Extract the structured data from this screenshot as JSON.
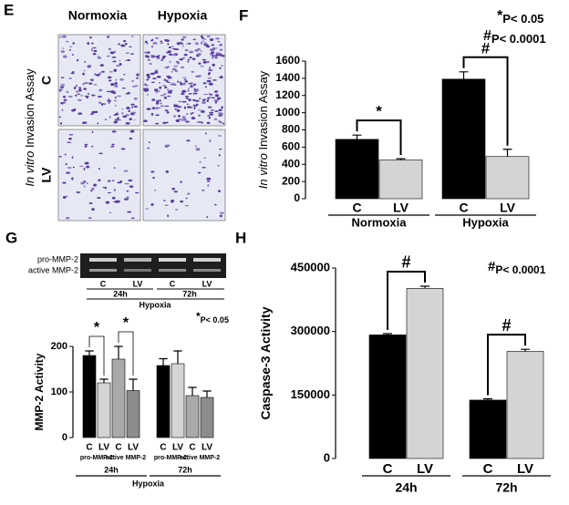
{
  "figure": {
    "panel_e": {
      "label": "E",
      "columns": [
        "Normoxia",
        "Hypoxia"
      ],
      "rows": [
        "C",
        "LV"
      ],
      "ylabel_italic": "In vitro",
      "ylabel": "Invasion Assay"
    },
    "panel_g_gel": {
      "bands": [
        "pro-MMP-2",
        "active MMP-2"
      ],
      "lanes": [
        "C",
        "LV",
        "C",
        "LV"
      ],
      "times": [
        "24h",
        "72h"
      ],
      "condition": "Hypoxia"
    }
  },
  "chart_data": [
    {
      "type": "bar",
      "panel": "F",
      "ylabel_italic": "In vitro",
      "ylabel": "Invasion Assay",
      "categories": [
        "Normoxia",
        "Hypoxia"
      ],
      "series": [
        {
          "name": "C",
          "color": "#000000",
          "values": [
            690,
            1390
          ],
          "errors": [
            50,
            85
          ]
        },
        {
          "name": "LV",
          "color": "#d4d4d4",
          "values": [
            450,
            490
          ],
          "errors": [
            15,
            85
          ]
        }
      ],
      "ylim": [
        0,
        1600
      ],
      "yticks": [
        0,
        200,
        400,
        600,
        800,
        1000,
        1200,
        1400,
        1600
      ],
      "brackets": [
        "*",
        "#"
      ],
      "notes": [
        {
          "symbol": "*",
          "text": "P< 0.05"
        },
        {
          "symbol": "#",
          "text": "P< 0.0001"
        }
      ]
    },
    {
      "type": "bar",
      "panel": "G",
      "ylabel": "MMP-2 Activity",
      "categories": [
        "24h",
        "72h"
      ],
      "subgroups": [
        "pro-MMP-2",
        "active MMP-2"
      ],
      "group_label": "Hypoxia",
      "series": [
        {
          "name": "C",
          "color": "#000000",
          "values": [
            180,
            158
          ],
          "errors": [
            10,
            15
          ]
        },
        {
          "name": "LV",
          "color": "#d4d4d4",
          "values": [
            120,
            162
          ],
          "errors": [
            8,
            28
          ]
        },
        {
          "name": "C",
          "color": "#a9a9a9",
          "values": [
            172,
            92
          ],
          "errors": [
            28,
            18
          ]
        },
        {
          "name": "LV",
          "color": "#8c8c8c",
          "values": [
            103,
            88
          ],
          "errors": [
            25,
            14
          ]
        }
      ],
      "ylim": [
        0,
        200
      ],
      "yticks": [
        0,
        100,
        200
      ],
      "brackets": [
        "*",
        "*"
      ],
      "notes": [
        {
          "symbol": "*",
          "text": "P< 0.05"
        }
      ]
    },
    {
      "type": "bar",
      "panel": "H",
      "ylabel": "Caspase-3 Activity",
      "categories": [
        "24h",
        "72h"
      ],
      "series": [
        {
          "name": "C",
          "color": "#000000",
          "values": [
            292000,
            138000
          ],
          "errors": [
            3000,
            3000
          ]
        },
        {
          "name": "LV",
          "color": "#d4d4d4",
          "values": [
            402000,
            253000
          ],
          "errors": [
            5000,
            5000
          ]
        }
      ],
      "ylim": [
        0,
        450000
      ],
      "yticks": [
        0,
        150000,
        300000,
        450000
      ],
      "brackets": [
        "#",
        "#"
      ],
      "notes": [
        {
          "symbol": "#",
          "text": "P< 0.0001"
        }
      ]
    }
  ]
}
